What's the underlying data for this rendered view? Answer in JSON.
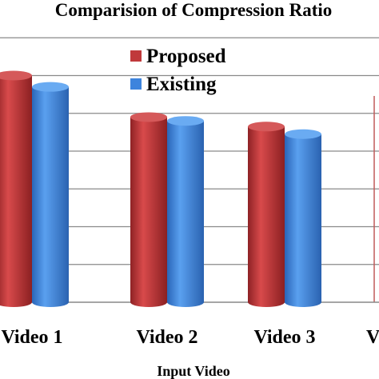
{
  "chart_data": {
    "type": "bar",
    "title": "Comparision of Compression Ratio",
    "xlabel": "Input Video",
    "ylabel": "",
    "categories": [
      "Video 1",
      "Video 2",
      "Video 3",
      "V"
    ],
    "series": [
      {
        "name": "Proposed",
        "values": [
          6.0,
          4.9,
          4.65,
          null
        ]
      },
      {
        "name": "Existing",
        "values": [
          5.7,
          4.8,
          4.45,
          null
        ]
      }
    ],
    "ylim": [
      0,
      8
    ],
    "grid": true,
    "legend_position": "top",
    "colors": {
      "Proposed": "#c0393b",
      "Existing": "#3d84dd"
    }
  }
}
